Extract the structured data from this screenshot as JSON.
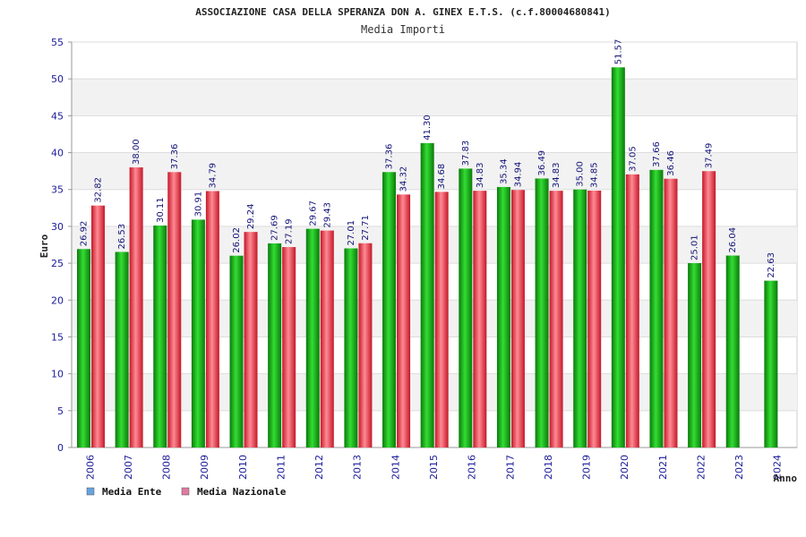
{
  "chart_data": {
    "type": "bar",
    "title": "ASSOCIAZIONE CASA DELLA SPERANZA DON A. GINEX E.T.S. (c.f.80004680841)",
    "subtitle": "Media Importi",
    "ylabel": "Euro",
    "xlabel": "Anno",
    "ylim": [
      0,
      55
    ],
    "yticks": [
      0,
      5,
      10,
      15,
      20,
      25,
      30,
      35,
      40,
      45,
      50,
      55
    ],
    "grid": true,
    "legend_position": "bottom-left",
    "categories": [
      "2006",
      "2007",
      "2008",
      "2009",
      "2010",
      "2011",
      "2012",
      "2013",
      "2014",
      "2015",
      "2016",
      "2017",
      "2018",
      "2019",
      "2020",
      "2021",
      "2022",
      "2023",
      "2024"
    ],
    "series": [
      {
        "name": "Media Ente",
        "color": "#22aa22",
        "legend_color": "#66a3e0",
        "values": [
          26.92,
          26.53,
          30.11,
          30.91,
          26.02,
          27.69,
          29.67,
          27.01,
          37.36,
          41.3,
          37.83,
          35.34,
          36.49,
          35.0,
          51.57,
          37.66,
          25.01,
          26.04,
          22.63
        ],
        "labels": [
          "26.92",
          "26.53",
          "30.11",
          "30.91",
          "26.02",
          "27.69",
          "29.67",
          "27.01",
          "37.36",
          "41.30",
          "37.83",
          "35.34",
          "36.49",
          "35.00",
          "51.57",
          "37.66",
          "25.01",
          "26.04",
          "22.63"
        ]
      },
      {
        "name": "Media Nazionale",
        "color": "#e83a4a",
        "legend_color": "#e07aa0",
        "values": [
          32.82,
          38.0,
          37.36,
          34.79,
          29.24,
          27.19,
          29.43,
          27.71,
          34.32,
          34.68,
          34.83,
          34.94,
          34.83,
          34.85,
          37.05,
          36.46,
          37.49,
          null,
          null
        ],
        "labels": [
          "32.82",
          "38.00",
          "37.36",
          "34.79",
          "29.24",
          "27.19",
          "29.43",
          "27.71",
          "34.32",
          "34.68",
          "34.83",
          "34.94",
          "34.83",
          "34.85",
          "37.05",
          "36.46",
          "37.49",
          null,
          null
        ]
      }
    ]
  }
}
